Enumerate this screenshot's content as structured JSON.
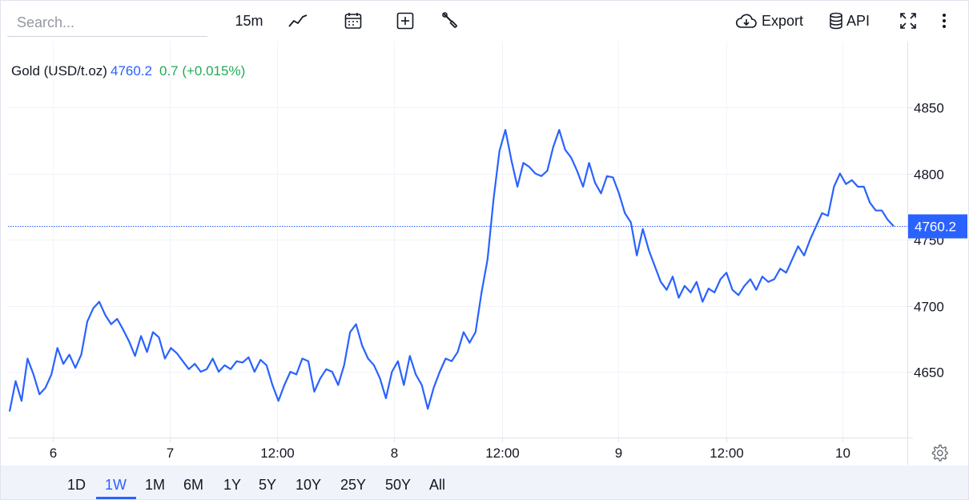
{
  "search": {
    "placeholder": "Search..."
  },
  "toolbar": {
    "interval": "15m",
    "export_label": "Export",
    "api_label": "API"
  },
  "legend": {
    "symbol": "Gold (USD/t.oz)",
    "price": "4760.2",
    "change": "0.7 (+0.015%)"
  },
  "colors": {
    "line": "#2962ff",
    "up": "#22ab55",
    "grid": "#f0f3fa",
    "price_tag_bg": "#2962ff"
  },
  "axis": {
    "y_ticks": [
      "4650",
      "4700",
      "4750",
      "4800",
      "4850"
    ],
    "x_labels": [
      "6",
      "7",
      "12:00",
      "8",
      "12:00",
      "9",
      "12:00",
      "10"
    ],
    "current_price_label": "4760.2"
  },
  "ranges": [
    "1D",
    "1W",
    "1M",
    "6M",
    "1Y",
    "5Y",
    "10Y",
    "25Y",
    "50Y",
    "All"
  ],
  "active_range": "1W",
  "chart_data": {
    "type": "line",
    "ylim": [
      4606,
      4887
    ],
    "yticks": [
      4650,
      4700,
      4750,
      4800,
      4850
    ],
    "x_tick_labels": [
      "6",
      "7",
      "12:00",
      "8",
      "12:00",
      "9",
      "12:00",
      "10"
    ],
    "last_value": 4760.2,
    "series": [
      {
        "values": [
          4620,
          4643,
          4628,
          4660,
          4648,
          4633,
          4638,
          4648,
          4668,
          4656,
          4663,
          4653,
          4663,
          4688,
          4698,
          4703,
          4693,
          4686,
          4690,
          4682,
          4673,
          4662,
          4677,
          4665,
          4680,
          4676,
          4660,
          4668,
          4664,
          4658,
          4652,
          4656,
          4650,
          4652,
          4660,
          4650,
          4655,
          4652,
          4658,
          4657,
          4661,
          4650,
          4659,
          4655,
          4640,
          4628,
          4640,
          4650,
          4648,
          4660,
          4658,
          4635,
          4645,
          4652,
          4650,
          4640,
          4655,
          4680,
          4686,
          4670,
          4660,
          4655,
          4645,
          4630,
          4650,
          4658,
          4640,
          4662,
          4648,
          4640,
          4622,
          4638,
          4650,
          4660,
          4658,
          4665,
          4680,
          4672,
          4680,
          4710,
          4735,
          4780,
          4817,
          4833,
          4810,
          4790,
          4808,
          4805,
          4800,
          4798,
          4802,
          4820,
          4833,
          4818,
          4812,
          4802,
          4790,
          4808,
          4793,
          4785,
          4798,
          4797,
          4785,
          4770,
          4763,
          4738,
          4758,
          4742,
          4730,
          4718,
          4712,
          4722,
          4706,
          4715,
          4710,
          4718,
          4703,
          4713,
          4710,
          4720,
          4725,
          4712,
          4708,
          4715,
          4720,
          4712,
          4722,
          4718,
          4720,
          4728,
          4725,
          4735,
          4745,
          4738,
          4750,
          4760,
          4770,
          4768,
          4790,
          4800,
          4792,
          4795,
          4790,
          4790,
          4778,
          4772,
          4772,
          4765,
          4760
        ]
      }
    ]
  }
}
